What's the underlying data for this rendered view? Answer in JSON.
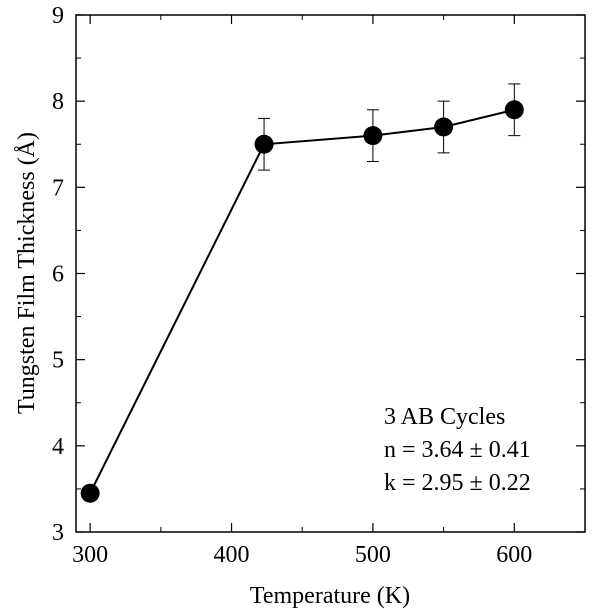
{
  "chart_data": {
    "type": "scatter",
    "title": "",
    "xlabel": "Temperature (K)",
    "ylabel": "Tungsten Film Thickness (Å)",
    "xlim": [
      290,
      650
    ],
    "ylim": [
      3,
      9
    ],
    "xticks": [
      300,
      400,
      500,
      600
    ],
    "yticks": [
      3,
      4,
      5,
      6,
      7,
      8,
      9
    ],
    "grid": false,
    "connect_points": true,
    "series": [
      {
        "x": [
          300,
          423,
          500,
          550,
          600
        ],
        "y": [
          3.45,
          7.5,
          7.6,
          7.7,
          7.9
        ],
        "yerr": [
          0,
          0.3,
          0.3,
          0.3,
          0.3
        ]
      }
    ],
    "annotations": [
      "3 AB Cycles",
      "n = 3.64 ± 0.41",
      "k = 2.95 ± 0.22"
    ]
  }
}
